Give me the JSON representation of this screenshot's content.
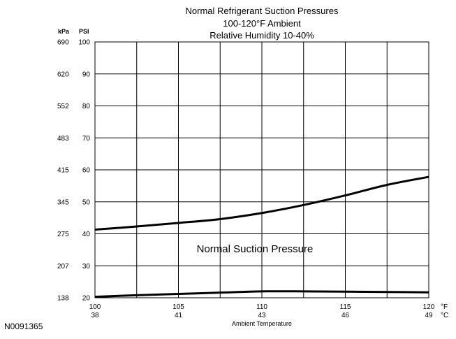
{
  "figure_id": "N0091365",
  "chart_data": {
    "type": "line",
    "title_lines": [
      "Normal  Refrigerant  Suction  Pressures",
      "100-120°F Ambient",
      "Relative Humidity 10-40%"
    ],
    "xlabel": "Ambient Temperature",
    "x_unit_f": "°F",
    "x_unit_c": "°C",
    "y_unit_kpa": "kPa",
    "y_unit_psi": "PSI",
    "x_ticks": [
      {
        "f": "100",
        "c": "38",
        "value": 100
      },
      {
        "f": "105",
        "c": "41",
        "value": 105
      },
      {
        "f": "110",
        "c": "43",
        "value": 110
      },
      {
        "f": "115",
        "c": "46",
        "value": 115
      },
      {
        "f": "120",
        "c": "49",
        "value": 120
      }
    ],
    "y_ticks": [
      {
        "psi": "100",
        "kpa": "690",
        "value": 100
      },
      {
        "psi": "90",
        "kpa": "620",
        "value": 90
      },
      {
        "psi": "80",
        "kpa": "552",
        "value": 80
      },
      {
        "psi": "70",
        "kpa": "483",
        "value": 70
      },
      {
        "psi": "60",
        "kpa": "415",
        "value": 60
      },
      {
        "psi": "50",
        "kpa": "345",
        "value": 50
      },
      {
        "psi": "40",
        "kpa": "275",
        "value": 40
      },
      {
        "psi": "30",
        "kpa": "207",
        "value": 30
      },
      {
        "psi": "20",
        "kpa": "138",
        "value": 20
      }
    ],
    "x_grid": [
      100,
      102.5,
      105,
      107.5,
      110,
      112.5,
      115,
      117.5,
      120
    ],
    "xlim": [
      100,
      120
    ],
    "ylim": [
      20,
      100
    ],
    "grid": true,
    "band_label": "Normal Suction Pressure",
    "series": [
      {
        "x": [
          100,
          102.5,
          105,
          107.5,
          110,
          112.5,
          115,
          117.5,
          120
        ],
        "y": [
          41.3,
          42.3,
          43.4,
          44.6,
          46.5,
          49.0,
          52.0,
          55.3,
          57.8
        ]
      },
      {
        "x": [
          100,
          102.5,
          105,
          107.5,
          110,
          112.5,
          115,
          117.5,
          120
        ],
        "y": [
          20.3,
          20.8,
          21.2,
          21.6,
          22.0,
          22.0,
          21.9,
          21.8,
          21.7
        ]
      }
    ]
  }
}
